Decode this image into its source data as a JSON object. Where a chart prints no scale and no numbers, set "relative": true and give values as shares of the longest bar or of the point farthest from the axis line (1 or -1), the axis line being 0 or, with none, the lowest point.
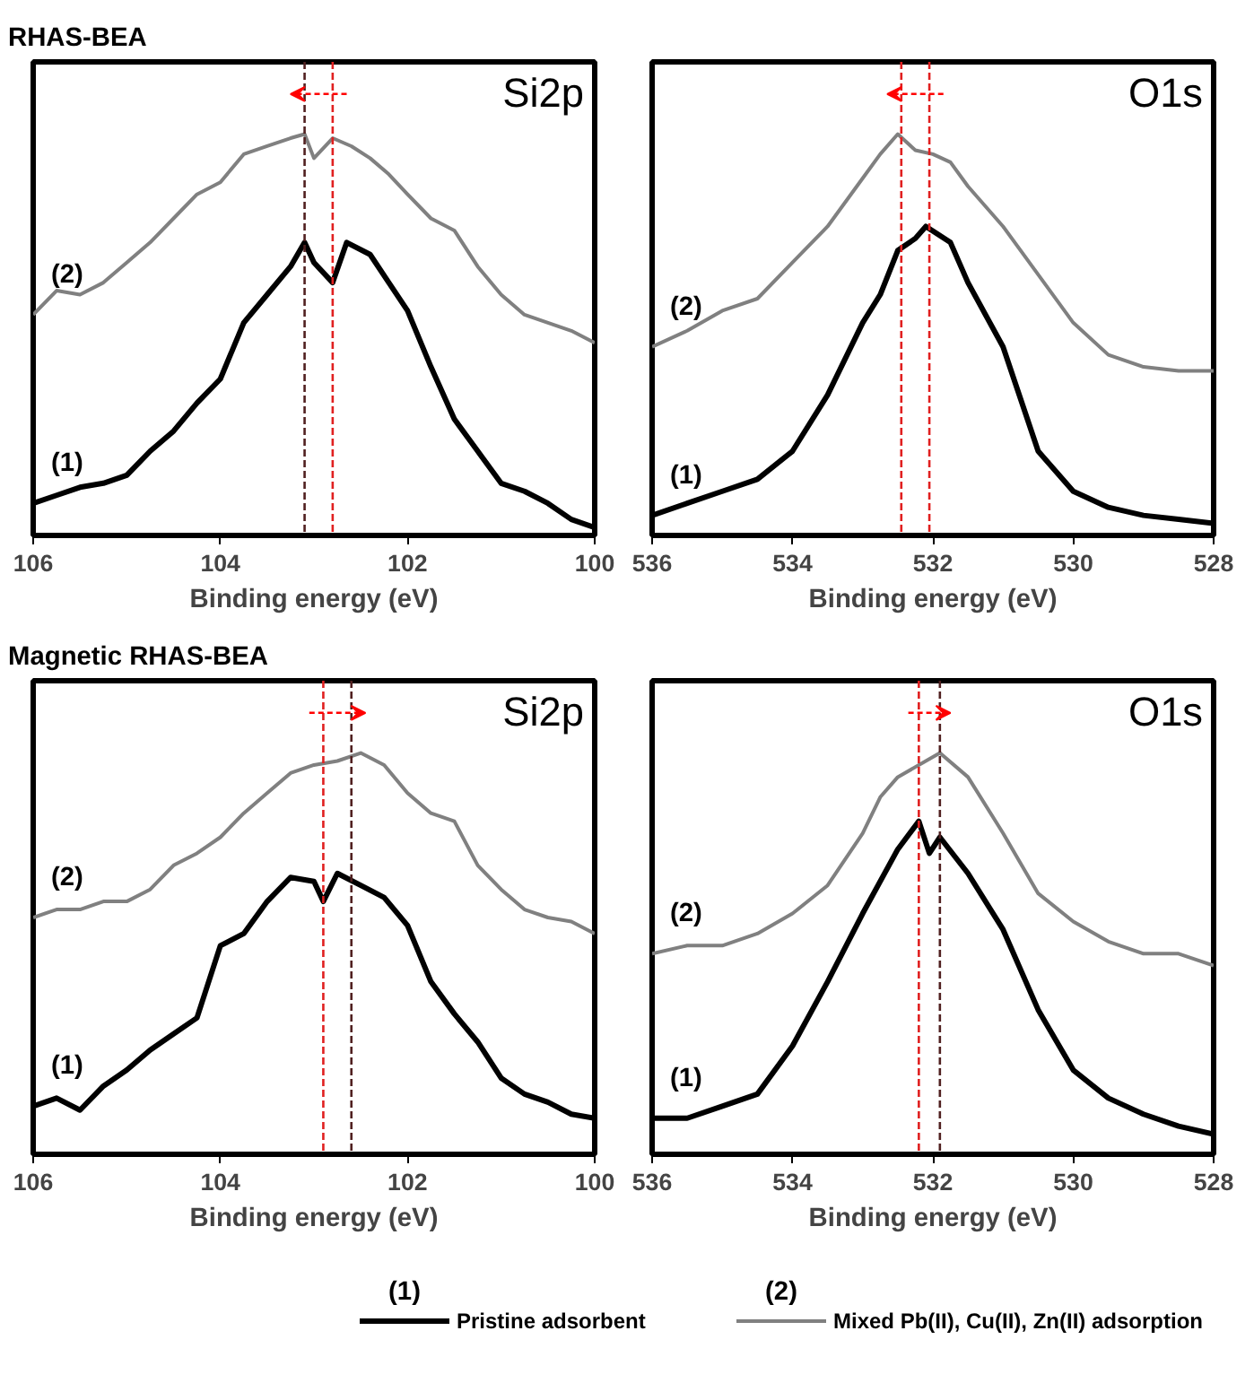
{
  "chart_data": [
    {
      "type": "line",
      "title": "RHAS-BEA",
      "xlabel": "Binding energy (eV)",
      "relative": true,
      "xlim": [
        106,
        100
      ],
      "xticks": [
        106,
        104,
        102,
        100
      ],
      "series": [
        {
          "color": "#000000",
          "x": [
            106,
            105.75,
            105.5,
            105.25,
            105,
            104.75,
            104.5,
            104.25,
            104,
            103.75,
            103.5,
            103.25,
            103.1,
            103,
            102.8,
            102.65,
            102.4,
            102.2,
            102,
            101.75,
            101.5,
            101.25,
            101,
            100.75,
            100.5,
            100.25,
            100
          ],
          "values": [
            0.08,
            0.1,
            0.12,
            0.13,
            0.15,
            0.21,
            0.26,
            0.33,
            0.39,
            0.53,
            0.6,
            0.67,
            0.73,
            0.68,
            0.63,
            0.73,
            0.7,
            0.63,
            0.56,
            0.42,
            0.29,
            0.21,
            0.13,
            0.11,
            0.08,
            0.04,
            0.02
          ]
        },
        {
          "color": "#808080",
          "x": [
            106,
            105.75,
            105.5,
            105.25,
            105,
            104.75,
            104.5,
            104.25,
            104,
            103.75,
            103.5,
            103.25,
            103.1,
            103,
            102.8,
            102.6,
            102.4,
            102.2,
            102,
            101.75,
            101.5,
            101.25,
            101,
            100.75,
            100.5,
            100.25,
            100
          ],
          "values": [
            0.55,
            0.61,
            0.6,
            0.63,
            0.68,
            0.73,
            0.79,
            0.85,
            0.88,
            0.95,
            0.97,
            0.99,
            1.0,
            0.94,
            0.99,
            0.97,
            0.94,
            0.9,
            0.85,
            0.79,
            0.76,
            0.67,
            0.6,
            0.55,
            0.53,
            0.51,
            0.48
          ]
        }
      ],
      "annotations": [
        "(1)",
        "(2)",
        "Si2p"
      ],
      "ref_lines": [
        {
          "axis": "x",
          "value": 102.8,
          "color": "#e02020",
          "line_style": "dashed"
        },
        {
          "axis": "x",
          "value": 103.1,
          "color": "#502020",
          "line_style": "dashed"
        }
      ]
    },
    {
      "type": "line",
      "xlabel": "Binding energy (eV)",
      "relative": true,
      "xlim": [
        536,
        528
      ],
      "xticks": [
        536,
        534,
        532,
        530,
        528
      ],
      "series": [
        {
          "color": "#000000",
          "x": [
            536,
            535.5,
            535,
            534.5,
            534,
            533.5,
            533,
            532.75,
            532.5,
            532.25,
            532.1,
            531.75,
            531.5,
            531,
            530.5,
            530,
            529.5,
            529,
            528.5,
            528
          ],
          "values": [
            0.05,
            0.08,
            0.11,
            0.14,
            0.21,
            0.35,
            0.53,
            0.6,
            0.71,
            0.74,
            0.77,
            0.73,
            0.63,
            0.47,
            0.21,
            0.11,
            0.07,
            0.05,
            0.04,
            0.03
          ]
        },
        {
          "color": "#808080",
          "x": [
            536,
            535.5,
            535,
            534.5,
            534,
            533.5,
            533,
            532.75,
            532.5,
            532.25,
            532,
            531.75,
            531.5,
            531,
            530.5,
            530,
            529.5,
            529,
            528.5,
            528
          ],
          "values": [
            0.47,
            0.51,
            0.56,
            0.59,
            0.68,
            0.77,
            0.89,
            0.95,
            1.0,
            0.96,
            0.95,
            0.93,
            0.87,
            0.77,
            0.65,
            0.53,
            0.45,
            0.42,
            0.41,
            0.41
          ]
        }
      ],
      "annotations": [
        "(1)",
        "(2)",
        "O1s"
      ],
      "ref_lines": [
        {
          "axis": "x",
          "value": 532.05,
          "color": "#e02020",
          "line_style": "dashed"
        },
        {
          "axis": "x",
          "value": 532.45,
          "color": "#e02020",
          "line_style": "dashed"
        }
      ]
    },
    {
      "type": "line",
      "title": "Magnetic RHAS-BEA",
      "xlabel": "Binding energy (eV)",
      "relative": true,
      "xlim": [
        106,
        100
      ],
      "xticks": [
        106,
        104,
        102,
        100
      ],
      "series": [
        {
          "color": "#000000",
          "x": [
            106,
            105.75,
            105.5,
            105.25,
            105,
            104.75,
            104.5,
            104.25,
            104,
            103.75,
            103.5,
            103.25,
            103,
            102.9,
            102.75,
            102.5,
            102.25,
            102,
            101.75,
            101.5,
            101.25,
            101,
            100.75,
            100.5,
            100.25,
            100
          ],
          "values": [
            0.12,
            0.14,
            0.11,
            0.17,
            0.21,
            0.26,
            0.3,
            0.34,
            0.52,
            0.55,
            0.63,
            0.69,
            0.68,
            0.63,
            0.7,
            0.67,
            0.64,
            0.57,
            0.43,
            0.35,
            0.28,
            0.19,
            0.15,
            0.13,
            0.1,
            0.09
          ]
        },
        {
          "color": "#808080",
          "x": [
            106,
            105.75,
            105.5,
            105.25,
            105,
            104.75,
            104.5,
            104.25,
            104,
            103.75,
            103.5,
            103.25,
            103,
            102.75,
            102.5,
            102.25,
            102,
            101.75,
            101.5,
            101.25,
            101,
            100.75,
            100.5,
            100.25,
            100
          ],
          "values": [
            0.59,
            0.61,
            0.61,
            0.63,
            0.63,
            0.66,
            0.72,
            0.75,
            0.79,
            0.85,
            0.9,
            0.95,
            0.97,
            0.98,
            1.0,
            0.97,
            0.9,
            0.85,
            0.83,
            0.72,
            0.66,
            0.61,
            0.59,
            0.58,
            0.55
          ]
        }
      ],
      "annotations": [
        "(1)",
        "(2)",
        "Si2p"
      ],
      "ref_lines": [
        {
          "axis": "x",
          "value": 102.9,
          "color": "#e02020",
          "line_style": "dashed"
        },
        {
          "axis": "x",
          "value": 102.6,
          "color": "#502020",
          "line_style": "dashed"
        }
      ]
    },
    {
      "type": "line",
      "xlabel": "Binding energy (eV)",
      "relative": true,
      "xlim": [
        536,
        528
      ],
      "xticks": [
        536,
        534,
        532,
        530,
        528
      ],
      "legend": "bottom",
      "series": [
        {
          "name": "Pristine adsorbent",
          "color": "#000000",
          "x": [
            536,
            535.5,
            535,
            534.5,
            534,
            533.5,
            533,
            532.5,
            532.2,
            532.05,
            531.9,
            531.5,
            531,
            530.5,
            530,
            529.5,
            529,
            528.5,
            528
          ],
          "values": [
            0.09,
            0.09,
            0.12,
            0.15,
            0.27,
            0.43,
            0.6,
            0.76,
            0.83,
            0.75,
            0.79,
            0.7,
            0.56,
            0.36,
            0.21,
            0.14,
            0.1,
            0.07,
            0.05
          ]
        },
        {
          "name": "Mixed Pb(II), Cu(II), Zn(II) adsorption",
          "color": "#808080",
          "x": [
            536,
            535.5,
            535,
            534.5,
            534,
            533.5,
            533,
            532.75,
            532.5,
            532,
            531.9,
            531.5,
            531,
            530.5,
            530,
            529.5,
            529,
            528.5,
            528
          ],
          "values": [
            0.5,
            0.52,
            0.52,
            0.55,
            0.6,
            0.67,
            0.8,
            0.89,
            0.94,
            0.99,
            1.0,
            0.94,
            0.8,
            0.65,
            0.58,
            0.53,
            0.5,
            0.5,
            0.47
          ]
        }
      ],
      "annotations": [
        "(1)",
        "(2)",
        "O1s"
      ],
      "ref_lines": [
        {
          "axis": "x",
          "value": 532.2,
          "color": "#e02020",
          "line_style": "dashed"
        },
        {
          "axis": "x",
          "value": 531.9,
          "color": "#502020",
          "line_style": "dashed"
        }
      ]
    }
  ]
}
